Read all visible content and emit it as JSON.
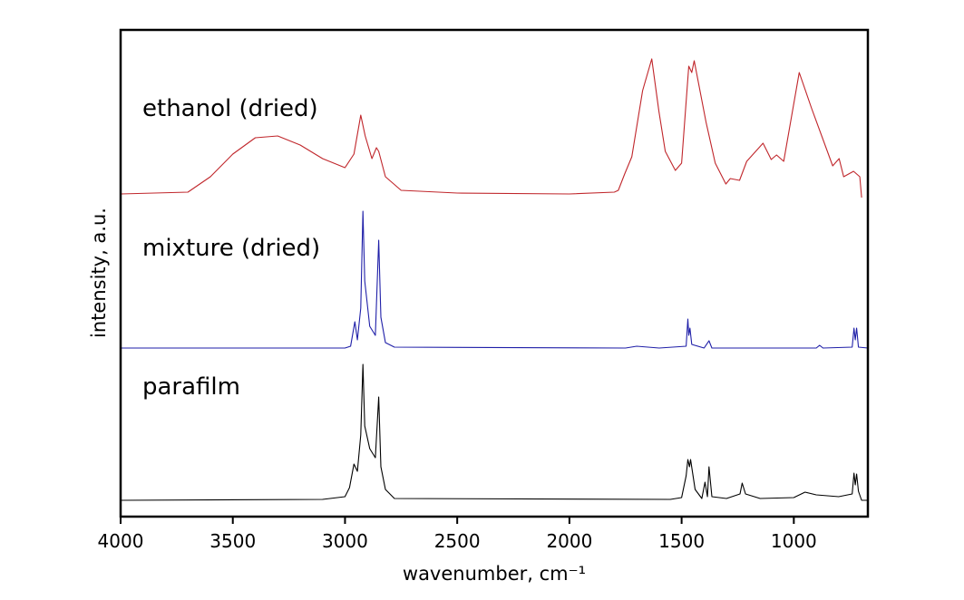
{
  "chart_data": {
    "type": "line",
    "title": "",
    "xlabel": "wavenumber, cm⁻¹",
    "ylabel": "intensity, a.u.",
    "xlim": [
      4000,
      670
    ],
    "ylim": [
      0,
      5.37
    ],
    "xticks": [
      4000,
      3500,
      3000,
      2500,
      2000,
      1500,
      1000
    ],
    "xtick_labels": [
      "4000",
      "3500",
      "3000",
      "2500",
      "2000",
      "1500",
      "1000"
    ],
    "yticks": [],
    "grid": false,
    "legend": "none",
    "series": [
      {
        "name": "ethanol (dried)",
        "color": "#c0262b",
        "label_y": 4.42,
        "points": [
          [
            4000,
            3.56
          ],
          [
            3700,
            3.58
          ],
          [
            3600,
            3.75
          ],
          [
            3500,
            4.0
          ],
          [
            3400,
            4.18
          ],
          [
            3300,
            4.2
          ],
          [
            3200,
            4.1
          ],
          [
            3100,
            3.95
          ],
          [
            3000,
            3.85
          ],
          [
            2960,
            4.0
          ],
          [
            2930,
            4.43
          ],
          [
            2910,
            4.2
          ],
          [
            2880,
            3.95
          ],
          [
            2860,
            4.07
          ],
          [
            2850,
            4.03
          ],
          [
            2820,
            3.75
          ],
          [
            2750,
            3.6
          ],
          [
            2500,
            3.57
          ],
          [
            2000,
            3.56
          ],
          [
            1800,
            3.58
          ],
          [
            1782,
            3.6
          ],
          [
            1754,
            3.78
          ],
          [
            1722,
            3.97
          ],
          [
            1674,
            4.7
          ],
          [
            1633,
            5.05
          ],
          [
            1601,
            4.47
          ],
          [
            1573,
            4.03
          ],
          [
            1528,
            3.82
          ],
          [
            1500,
            3.9
          ],
          [
            1468,
            4.97
          ],
          [
            1455,
            4.9
          ],
          [
            1444,
            5.03
          ],
          [
            1391,
            4.35
          ],
          [
            1350,
            3.9
          ],
          [
            1303,
            3.67
          ],
          [
            1283,
            3.73
          ],
          [
            1242,
            3.71
          ],
          [
            1210,
            3.92
          ],
          [
            1137,
            4.12
          ],
          [
            1101,
            3.94
          ],
          [
            1077,
            3.99
          ],
          [
            1045,
            3.92
          ],
          [
            976,
            4.9
          ],
          [
            920,
            4.5
          ],
          [
            827,
            3.87
          ],
          [
            798,
            3.95
          ],
          [
            778,
            3.75
          ],
          [
            734,
            3.81
          ],
          [
            706,
            3.75
          ],
          [
            698,
            3.52
          ]
        ]
      },
      {
        "name": "mixture (dried)",
        "color": "#1f1fa8",
        "label_y": 2.88,
        "points": [
          [
            4000,
            1.86
          ],
          [
            3000,
            1.86
          ],
          [
            2975,
            1.88
          ],
          [
            2956,
            2.15
          ],
          [
            2945,
            1.95
          ],
          [
            2930,
            2.3
          ],
          [
            2920,
            3.37
          ],
          [
            2912,
            2.6
          ],
          [
            2890,
            2.1
          ],
          [
            2865,
            2.0
          ],
          [
            2850,
            3.05
          ],
          [
            2840,
            2.2
          ],
          [
            2820,
            1.92
          ],
          [
            2780,
            1.87
          ],
          [
            1750,
            1.86
          ],
          [
            1700,
            1.88
          ],
          [
            1600,
            1.86
          ],
          [
            1480,
            1.88
          ],
          [
            1472,
            2.18
          ],
          [
            1468,
            2.0
          ],
          [
            1463,
            2.08
          ],
          [
            1455,
            1.9
          ],
          [
            1400,
            1.86
          ],
          [
            1378,
            1.94
          ],
          [
            1365,
            1.86
          ],
          [
            900,
            1.86
          ],
          [
            885,
            1.89
          ],
          [
            870,
            1.86
          ],
          [
            740,
            1.87
          ],
          [
            732,
            2.08
          ],
          [
            726,
            1.95
          ],
          [
            720,
            2.08
          ],
          [
            712,
            1.87
          ],
          [
            670,
            1.86
          ]
        ]
      },
      {
        "name": "parafilm",
        "color": "#000000",
        "label_y": 1.35,
        "points": [
          [
            4000,
            0.18
          ],
          [
            3100,
            0.19
          ],
          [
            3000,
            0.22
          ],
          [
            2980,
            0.32
          ],
          [
            2960,
            0.58
          ],
          [
            2945,
            0.5
          ],
          [
            2930,
            0.9
          ],
          [
            2920,
            1.68
          ],
          [
            2912,
            1.0
          ],
          [
            2890,
            0.75
          ],
          [
            2865,
            0.65
          ],
          [
            2850,
            1.32
          ],
          [
            2840,
            0.55
          ],
          [
            2820,
            0.3
          ],
          [
            2780,
            0.2
          ],
          [
            1550,
            0.19
          ],
          [
            1500,
            0.21
          ],
          [
            1480,
            0.45
          ],
          [
            1472,
            0.63
          ],
          [
            1465,
            0.55
          ],
          [
            1460,
            0.63
          ],
          [
            1440,
            0.3
          ],
          [
            1410,
            0.2
          ],
          [
            1396,
            0.38
          ],
          [
            1385,
            0.22
          ],
          [
            1378,
            0.55
          ],
          [
            1365,
            0.22
          ],
          [
            1300,
            0.2
          ],
          [
            1240,
            0.25
          ],
          [
            1230,
            0.37
          ],
          [
            1215,
            0.25
          ],
          [
            1150,
            0.2
          ],
          [
            1000,
            0.21
          ],
          [
            950,
            0.27
          ],
          [
            900,
            0.24
          ],
          [
            800,
            0.22
          ],
          [
            740,
            0.25
          ],
          [
            732,
            0.48
          ],
          [
            726,
            0.35
          ],
          [
            720,
            0.47
          ],
          [
            712,
            0.28
          ],
          [
            698,
            0.18
          ],
          [
            670,
            0.18
          ]
        ]
      }
    ]
  }
}
